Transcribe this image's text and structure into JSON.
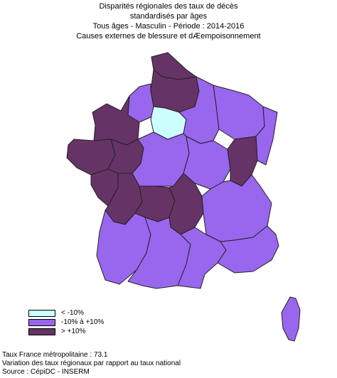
{
  "title": {
    "line1": "Disparités régionales des taux de décès",
    "line2": "standardisés par âges",
    "line3": "Tous âges - Masculin - Période : 2014-2016",
    "line4": "Causes externes de blessure et dÆempoisonnement"
  },
  "colors": {
    "low": "#ccffff",
    "mid": "#9966ee",
    "high": "#663366",
    "border": "#222222"
  },
  "legend": [
    {
      "class": "low",
      "label": "< -10%"
    },
    {
      "class": "mid",
      "label": "-10% à +10%"
    },
    {
      "class": "high",
      "label": "> +10%"
    }
  ],
  "regions": [
    {
      "name": "Nord-Pas-de-Calais",
      "class": "high"
    },
    {
      "name": "Picardie",
      "class": "high"
    },
    {
      "name": "Haute-Normandie",
      "class": "mid"
    },
    {
      "name": "Île-de-France",
      "class": "low"
    },
    {
      "name": "Champagne-Ardenne",
      "class": "mid"
    },
    {
      "name": "Lorraine",
      "class": "mid"
    },
    {
      "name": "Alsace",
      "class": "mid"
    },
    {
      "name": "Basse-Normandie",
      "class": "high"
    },
    {
      "name": "Bretagne",
      "class": "high"
    },
    {
      "name": "Pays de la Loire",
      "class": "high"
    },
    {
      "name": "Centre",
      "class": "mid"
    },
    {
      "name": "Bourgogne",
      "class": "mid"
    },
    {
      "name": "Franche-Comté",
      "class": "high"
    },
    {
      "name": "Poitou-Charentes",
      "class": "high"
    },
    {
      "name": "Limousin",
      "class": "high"
    },
    {
      "name": "Auvergne",
      "class": "high"
    },
    {
      "name": "Rhône-Alpes",
      "class": "mid"
    },
    {
      "name": "Aquitaine",
      "class": "mid"
    },
    {
      "name": "Midi-Pyrénées",
      "class": "mid"
    },
    {
      "name": "Languedoc-Roussillon",
      "class": "mid"
    },
    {
      "name": "Provence-Alpes-Côte d'Azur",
      "class": "mid"
    },
    {
      "name": "Corse",
      "class": "mid"
    }
  ],
  "footer": {
    "line1": "Taux France métropolitaine : 73.1",
    "line2": "Variation des taux régionaux par rapport au taux national",
    "line3": "Source : CépiDC - INSERM"
  }
}
